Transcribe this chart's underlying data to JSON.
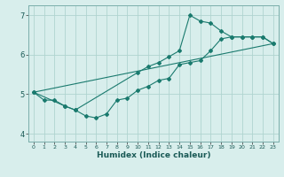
{
  "xlabel": "Humidex (Indice chaleur)",
  "ylabel": "",
  "xlim": [
    -0.5,
    23.5
  ],
  "ylim": [
    3.8,
    7.25
  ],
  "yticks": [
    4,
    5,
    6,
    7
  ],
  "xticks": [
    0,
    1,
    2,
    3,
    4,
    5,
    6,
    7,
    8,
    9,
    10,
    11,
    12,
    13,
    14,
    15,
    16,
    17,
    18,
    19,
    20,
    21,
    22,
    23
  ],
  "bg_color": "#d8eeec",
  "line_color": "#1a7a6e",
  "grid_color": "#b0d4d0",
  "line1_x": [
    0,
    1,
    2,
    3,
    4,
    5,
    6,
    7,
    8,
    9,
    10,
    11,
    12,
    13,
    14,
    15,
    16,
    17,
    18,
    19,
    20,
    21,
    22,
    23
  ],
  "line1_y": [
    5.05,
    4.85,
    4.85,
    4.7,
    4.6,
    4.45,
    4.4,
    4.5,
    4.85,
    4.9,
    5.1,
    5.2,
    5.35,
    5.4,
    5.75,
    5.8,
    5.85,
    6.1,
    6.4,
    6.45,
    6.45,
    6.45,
    6.45,
    6.28
  ],
  "line2_x": [
    0,
    3,
    4,
    10,
    11,
    12,
    13,
    14,
    15,
    16,
    17,
    18,
    19,
    20,
    21,
    22,
    23
  ],
  "line2_y": [
    5.05,
    4.7,
    4.6,
    5.55,
    5.7,
    5.8,
    5.95,
    6.1,
    7.0,
    6.85,
    6.8,
    6.6,
    6.45,
    6.45,
    6.45,
    6.45,
    6.28
  ],
  "line3_x": [
    0,
    23
  ],
  "line3_y": [
    5.05,
    6.28
  ]
}
